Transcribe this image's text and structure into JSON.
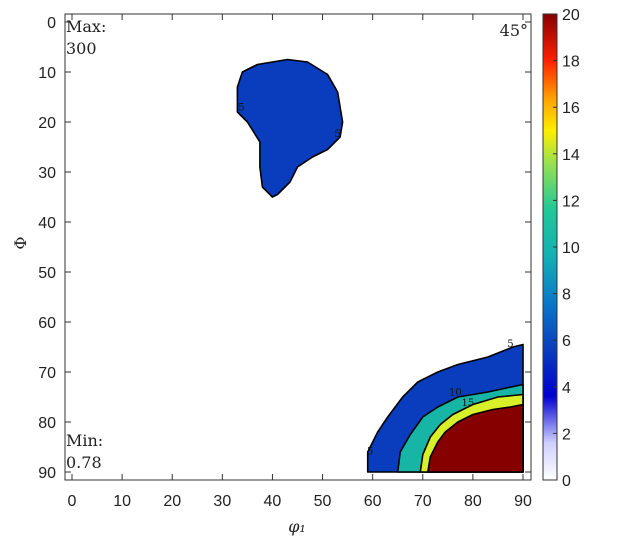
{
  "chart_data": {
    "type": "contour",
    "xlabel": "φ₁",
    "ylabel": "Φ",
    "xlim": [
      0,
      90
    ],
    "ylim": [
      0,
      90
    ],
    "x_ticks": [
      "0",
      "10",
      "20",
      "30",
      "40",
      "50",
      "60",
      "70",
      "80",
      "90"
    ],
    "y_ticks": [
      "0",
      "10",
      "20",
      "30",
      "40",
      "50",
      "60",
      "70",
      "80",
      "90"
    ],
    "section_label": "45°",
    "max_label": "Max:",
    "max_value": "300",
    "min_label": "Min:",
    "min_value": "0.78",
    "colorbar": {
      "min": 0,
      "max": 20,
      "ticks": [
        "0",
        "2",
        "4",
        "6",
        "8",
        "10",
        "12",
        "14",
        "16",
        "18",
        "20"
      ]
    },
    "contour_levels": [
      "5",
      "10",
      "15"
    ],
    "regions": [
      {
        "name": "upper-blob",
        "level": 5,
        "color": "#0a3dbd",
        "boundary": [
          [
            33,
            13
          ],
          [
            34,
            10
          ],
          [
            37,
            8.5
          ],
          [
            43,
            7.5
          ],
          [
            47,
            8
          ],
          [
            51,
            10.5
          ],
          [
            53,
            14
          ],
          [
            54,
            20
          ],
          [
            53.5,
            23
          ],
          [
            51,
            25.5
          ],
          [
            48,
            27
          ],
          [
            45,
            29
          ],
          [
            43.5,
            32
          ],
          [
            41,
            34.5
          ],
          [
            40,
            35
          ],
          [
            38,
            33
          ],
          [
            37.5,
            29
          ],
          [
            37.5,
            24
          ],
          [
            35,
            20
          ],
          [
            33,
            18
          ]
        ]
      },
      {
        "name": "corner-level-5",
        "level": 5,
        "color": "#0a3dbd",
        "boundary": [
          [
            59,
            90
          ],
          [
            59,
            86
          ],
          [
            61,
            82
          ],
          [
            63,
            79
          ],
          [
            66,
            75
          ],
          [
            69,
            72
          ],
          [
            73,
            70
          ],
          [
            77,
            68.5
          ],
          [
            83,
            67
          ],
          [
            88,
            65
          ],
          [
            90,
            64.5
          ],
          [
            90,
            90
          ]
        ]
      },
      {
        "name": "corner-level-10",
        "level": 10,
        "color": "#17b5a6",
        "boundary": [
          [
            65,
            90
          ],
          [
            65.5,
            86
          ],
          [
            67.5,
            82.5
          ],
          [
            70,
            79
          ],
          [
            73,
            77
          ],
          [
            77,
            75
          ],
          [
            83,
            74
          ],
          [
            90,
            72.5
          ],
          [
            90,
            90
          ]
        ]
      },
      {
        "name": "corner-level-15",
        "level": 15,
        "color": "#d8f02a",
        "boundary": [
          [
            69.5,
            90
          ],
          [
            70,
            86.5
          ],
          [
            71.5,
            83
          ],
          [
            73.5,
            80.5
          ],
          [
            76,
            78.5
          ],
          [
            80,
            76.5
          ],
          [
            85,
            75
          ],
          [
            90,
            74.5
          ],
          [
            90,
            90
          ]
        ]
      },
      {
        "name": "corner-level-20",
        "level": 20,
        "color": "#870000",
        "boundary": [
          [
            71,
            90
          ],
          [
            71.5,
            87
          ],
          [
            73,
            84
          ],
          [
            74.5,
            82
          ],
          [
            77,
            80
          ],
          [
            80,
            78.5
          ],
          [
            84,
            77.5
          ],
          [
            87.5,
            77
          ],
          [
            90,
            76.5
          ],
          [
            90,
            90
          ]
        ]
      }
    ],
    "contour_labels": [
      {
        "text": "5",
        "x": 33.8,
        "y": 17.2
      },
      {
        "text": "5",
        "x": 53,
        "y": 22.5
      },
      {
        "text": "5",
        "x": 59.5,
        "y": 86
      },
      {
        "text": "5",
        "x": 87.5,
        "y": 64.5
      },
      {
        "text": "10",
        "x": 76.5,
        "y": 74.2
      },
      {
        "text": "15",
        "x": 79,
        "y": 76.3
      }
    ]
  }
}
